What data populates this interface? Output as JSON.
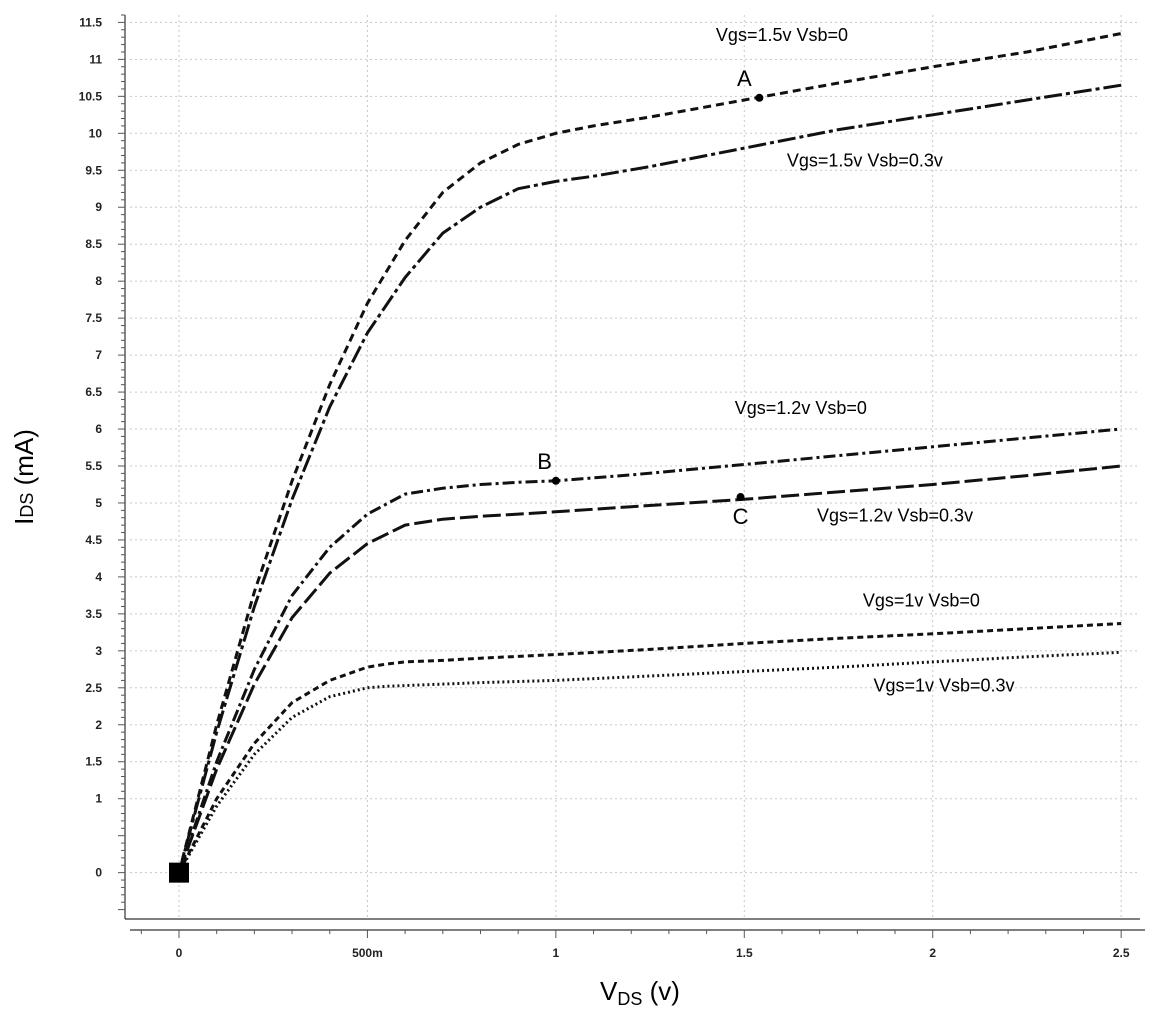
{
  "chart_data": {
    "type": "line",
    "title": "",
    "xlabel": "V",
    "xlabel_sub": "DS",
    "xlabel_unit": " (v)",
    "ylabel": "I",
    "ylabel_sub": "DS",
    "ylabel_unit": " (mA)",
    "xlim": [
      -0.13,
      2.55
    ],
    "ylim": [
      -0.6,
      11.6
    ],
    "grid": true,
    "x_ticks": [
      {
        "value": 0,
        "label": "0"
      },
      {
        "value": 0.5,
        "label": "500m"
      },
      {
        "value": 1,
        "label": "1"
      },
      {
        "value": 1.5,
        "label": "1.5"
      },
      {
        "value": 2,
        "label": "2"
      },
      {
        "value": 2.5,
        "label": "2.5"
      }
    ],
    "y_ticks": [
      {
        "value": 0,
        "label": "0"
      },
      {
        "value": 1,
        "label": "1"
      },
      {
        "value": 1.5,
        "label": "1.5"
      },
      {
        "value": 2,
        "label": "2"
      },
      {
        "value": 2.5,
        "label": "2.5"
      },
      {
        "value": 3,
        "label": "3"
      },
      {
        "value": 3.5,
        "label": "3.5"
      },
      {
        "value": 4,
        "label": "4"
      },
      {
        "value": 4.5,
        "label": "4.5"
      },
      {
        "value": 5,
        "label": "5"
      },
      {
        "value": 5.5,
        "label": "5.5"
      },
      {
        "value": 6,
        "label": "6"
      },
      {
        "value": 6.5,
        "label": "6.5"
      },
      {
        "value": 7,
        "label": "7"
      },
      {
        "value": 7.5,
        "label": "7.5"
      },
      {
        "value": 8,
        "label": "8"
      },
      {
        "value": 8.5,
        "label": "8.5"
      },
      {
        "value": 9,
        "label": "9"
      },
      {
        "value": 9.5,
        "label": "9.5"
      },
      {
        "value": 10,
        "label": "10"
      },
      {
        "value": 10.5,
        "label": "10.5"
      },
      {
        "value": 11,
        "label": "11"
      },
      {
        "value": 11.5,
        "label": "11.5"
      }
    ],
    "series": [
      {
        "name": "Vgs=1.5v Vsb=0",
        "dash": "8 5",
        "label_x": 1.6,
        "label_y": 11.25,
        "x": [
          0,
          0.1,
          0.2,
          0.3,
          0.4,
          0.5,
          0.6,
          0.7,
          0.8,
          0.9,
          1.0,
          1.1,
          1.25,
          1.5,
          1.75,
          2.0,
          2.25,
          2.5
        ],
        "y": [
          0,
          2.0,
          3.8,
          5.3,
          6.6,
          7.7,
          8.55,
          9.2,
          9.6,
          9.85,
          10.0,
          10.1,
          10.22,
          10.45,
          10.68,
          10.9,
          11.1,
          11.35
        ]
      },
      {
        "name": "Vgs=1.5v Vsb=0.3v",
        "dash": "18 4 4 4",
        "label_x": 1.82,
        "label_y": 9.55,
        "x": [
          0,
          0.1,
          0.2,
          0.3,
          0.4,
          0.5,
          0.6,
          0.7,
          0.8,
          0.9,
          1.0,
          1.1,
          1.25,
          1.5,
          1.75,
          2.0,
          2.25,
          2.5
        ],
        "y": [
          0,
          1.9,
          3.6,
          5.05,
          6.3,
          7.3,
          8.05,
          8.65,
          9.0,
          9.25,
          9.35,
          9.42,
          9.55,
          9.8,
          10.05,
          10.25,
          10.45,
          10.65
        ]
      },
      {
        "name": "Vgs=1.2v Vsb=0",
        "dash": "12 4 3 4",
        "label_x": 1.65,
        "label_y": 6.2,
        "x": [
          0,
          0.1,
          0.2,
          0.3,
          0.4,
          0.5,
          0.6,
          0.7,
          0.8,
          0.9,
          1.0,
          1.2,
          1.5,
          1.75,
          2.0,
          2.25,
          2.5
        ],
        "y": [
          0,
          1.5,
          2.75,
          3.75,
          4.4,
          4.85,
          5.12,
          5.2,
          5.25,
          5.28,
          5.3,
          5.38,
          5.52,
          5.64,
          5.76,
          5.88,
          6.0
        ]
      },
      {
        "name": "Vgs=1.2v Vsb=0.3v",
        "dash": "18 5",
        "label_x": 1.9,
        "label_y": 4.75,
        "x": [
          0,
          0.1,
          0.2,
          0.3,
          0.4,
          0.5,
          0.6,
          0.7,
          0.8,
          0.9,
          1.0,
          1.2,
          1.5,
          1.75,
          2.0,
          2.25,
          2.5
        ],
        "y": [
          0,
          1.4,
          2.55,
          3.45,
          4.05,
          4.45,
          4.7,
          4.78,
          4.82,
          4.85,
          4.88,
          4.95,
          5.05,
          5.15,
          5.25,
          5.37,
          5.5
        ]
      },
      {
        "name": "Vgs=1v Vsb=0",
        "dash": "6 4",
        "label_x": 1.97,
        "label_y": 3.6,
        "x": [
          0,
          0.1,
          0.2,
          0.3,
          0.4,
          0.5,
          0.55,
          0.6,
          0.7,
          0.8,
          1.0,
          1.25,
          1.5,
          1.75,
          2.0,
          2.25,
          2.5
        ],
        "y": [
          0,
          1.0,
          1.75,
          2.3,
          2.6,
          2.78,
          2.82,
          2.85,
          2.87,
          2.9,
          2.95,
          3.02,
          3.1,
          3.17,
          3.23,
          3.3,
          3.37
        ]
      },
      {
        "name": "Vgs=1v  Vsb=0.3v",
        "dash": "2 3",
        "label_x": 2.03,
        "label_y": 2.45,
        "x": [
          0,
          0.1,
          0.2,
          0.3,
          0.4,
          0.5,
          0.55,
          0.6,
          0.7,
          0.8,
          1.0,
          1.25,
          1.5,
          1.75,
          2.0,
          2.25,
          2.5
        ],
        "y": [
          0,
          0.9,
          1.6,
          2.1,
          2.38,
          2.5,
          2.52,
          2.53,
          2.55,
          2.57,
          2.6,
          2.66,
          2.72,
          2.78,
          2.85,
          2.92,
          2.98
        ]
      }
    ],
    "points": [
      {
        "label": "A",
        "x": 1.54,
        "y": 10.48,
        "label_dx": -0.04,
        "label_dy": 0.15,
        "label_side": "above"
      },
      {
        "label": "B",
        "x": 1.0,
        "y": 5.3,
        "label_dx": -0.03,
        "label_dy": 0.15,
        "label_side": "above"
      },
      {
        "label": "C",
        "x": 1.49,
        "y": 5.08,
        "label_dx": 0.0,
        "label_dy": -0.35,
        "label_side": "below"
      }
    ],
    "origin_marker": {
      "x": 0,
      "y": 0
    }
  }
}
